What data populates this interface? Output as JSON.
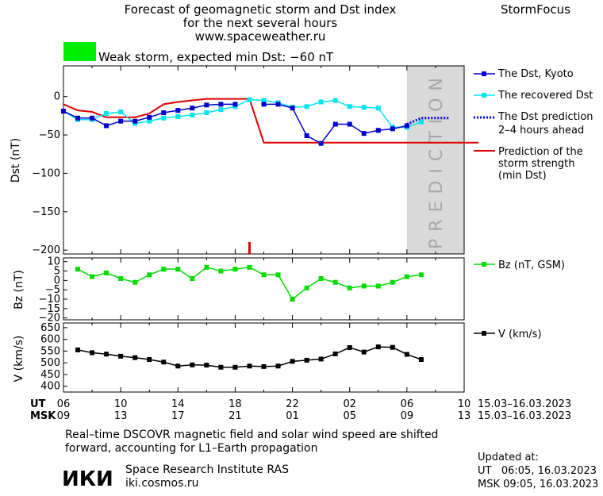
{
  "header": {
    "title_lines": [
      "Forecast of geomagnetic storm and Dst index",
      "for the next several hours",
      "www.spaceweather.ru"
    ],
    "app_name": "StormFocus",
    "status_text": "Weak storm, expected min Dst: −60 nT",
    "status_color": "#00ee00"
  },
  "legend": {
    "dst_kyoto": "The Dst, Kyoto",
    "dst_recovered": "The recovered Dst",
    "dst_prediction": [
      "The Dst prediction",
      "2–4 hours ahead"
    ],
    "storm_strength": [
      "Prediction of the",
      "storm strength",
      "(min Dst)"
    ],
    "bz": "Bz (nT, GSM)",
    "v": "V (km/s)"
  },
  "prediction_label": "PREDICTION",
  "x_axis": {
    "ut_label": "UT",
    "msk_label": "MSK",
    "ut_ticks": [
      "06",
      "10",
      "14",
      "18",
      "22",
      "02",
      "06",
      "10"
    ],
    "msk_ticks": [
      "09",
      "13",
      "17",
      "21",
      "01",
      "05",
      "09",
      "13"
    ],
    "date_range": "15.03–16.03.2023"
  },
  "footer": {
    "note_lines": [
      "Real–time DSCOVR magnetic field and solar wind speed are shifted",
      "forward, accounting for L1–Earth propagation"
    ],
    "logo_text": "ИКИ",
    "institute": "Space Research Institute RAS",
    "site": "iki.cosmos.ru",
    "updated_label": "Updated at:",
    "updated_ut": "UT   06:05, 16.03.2023",
    "updated_msk": "MSK 09:05, 16.03.2023"
  },
  "colors": {
    "kyoto": "#0000cc",
    "recovered": "#00e5ee",
    "prediction": "#0000cc",
    "strength": "#dd0000",
    "bz": "#00dd00",
    "v": "#000000",
    "shade": "#d9d9d9"
  },
  "chart_data": [
    {
      "type": "line",
      "ylabel": "Dst (nT)",
      "ylim": [
        -205,
        40
      ],
      "yticks": [
        0,
        -50,
        -100,
        -150,
        -200
      ],
      "xlim": [
        0,
        28
      ],
      "series": [
        {
          "name": "The Dst, Kyoto",
          "x": [
            0,
            1,
            2,
            3,
            4,
            5,
            6,
            7,
            8,
            9,
            10,
            11,
            12,
            13,
            14,
            15,
            16,
            17,
            18,
            19,
            20,
            21,
            22,
            23,
            24
          ],
          "y": [
            -19,
            -28,
            -28,
            -38,
            -32,
            -32,
            -27,
            -21,
            -18,
            -15,
            -11,
            -10,
            -10,
            null,
            -10,
            -10,
            -15,
            -51,
            -61,
            -36,
            -36,
            -48,
            -44,
            -42,
            -38
          ]
        },
        {
          "name": "The recovered Dst",
          "x": [
            0,
            1,
            2,
            3,
            4,
            5,
            6,
            7,
            8,
            9,
            10,
            11,
            12,
            13,
            14,
            15,
            16,
            17,
            18,
            19,
            20,
            21,
            22,
            23,
            24,
            25
          ],
          "y": [
            -19,
            -30,
            -30,
            -22,
            -20,
            -35,
            -32,
            -28,
            -26,
            -24,
            -21,
            -17,
            -13,
            -4,
            -5,
            -8,
            -14,
            -13,
            -7,
            -5,
            -13,
            -14,
            -15,
            -40,
            -40,
            -33
          ]
        },
        {
          "name": "The Dst prediction 2–4 hours ahead",
          "x": [
            24,
            25,
            26,
            27
          ],
          "y": [
            -36,
            -28,
            -28,
            -28
          ]
        },
        {
          "name": "Prediction of the storm strength (min Dst)",
          "x": [
            0,
            1,
            2,
            3,
            4,
            5,
            6,
            7,
            8,
            9,
            10,
            11,
            12,
            13,
            14,
            15,
            16,
            17,
            18,
            19,
            20,
            21,
            22,
            23,
            24,
            25,
            26,
            27,
            28,
            29
          ],
          "y": [
            -10,
            -18,
            -20,
            -27,
            -27,
            -27,
            -22,
            -10,
            -7,
            -5,
            -3,
            -3,
            -3,
            -3,
            -60,
            -60,
            -60,
            -60,
            -60,
            -60,
            -60,
            -60,
            -60,
            -60,
            -60,
            -60,
            -60,
            -60,
            -60,
            -60
          ]
        }
      ],
      "prediction_window_x": [
        24,
        28
      ],
      "marker_x": 13
    },
    {
      "type": "line",
      "ylabel": "Bz (nT)",
      "ylim": [
        -21,
        12
      ],
      "yticks": [
        10,
        5,
        0,
        -5,
        -10,
        -15,
        -20
      ],
      "xlim": [
        0,
        28
      ],
      "series": [
        {
          "name": "Bz (nT, GSM)",
          "x": [
            1,
            2,
            3,
            4,
            5,
            6,
            7,
            8,
            9,
            10,
            11,
            12,
            13,
            14,
            15,
            16,
            17,
            18,
            19,
            20,
            21,
            22,
            23,
            24,
            25
          ],
          "y": [
            6,
            2,
            4,
            1,
            -1,
            3,
            6,
            6,
            1,
            7,
            5,
            6,
            7,
            3,
            3,
            -10,
            -4,
            1,
            -1,
            -4,
            -3,
            -3,
            -1,
            2,
            3
          ]
        }
      ]
    },
    {
      "type": "line",
      "ylabel": "V (km/s)",
      "ylim": [
        375,
        670
      ],
      "yticks": [
        650,
        600,
        550,
        500,
        450,
        400
      ],
      "xlim": [
        0,
        28
      ],
      "series": [
        {
          "name": "V (km/s)",
          "x": [
            1,
            2,
            3,
            4,
            5,
            6,
            7,
            8,
            9,
            10,
            11,
            12,
            13,
            14,
            15,
            16,
            17,
            18,
            19,
            20,
            21,
            22,
            23,
            24,
            25
          ],
          "y": [
            555,
            543,
            537,
            528,
            522,
            514,
            503,
            486,
            491,
            490,
            481,
            481,
            486,
            484,
            486,
            506,
            511,
            516,
            538,
            565,
            546,
            568,
            566,
            536,
            514
          ]
        }
      ]
    }
  ]
}
